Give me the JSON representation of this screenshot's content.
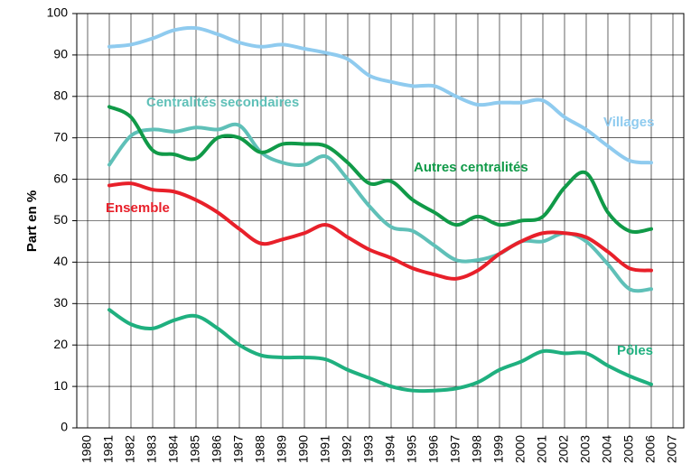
{
  "chart_data": {
    "type": "line",
    "y_label": "Part en %",
    "x": [
      1981,
      1982,
      1983,
      1984,
      1985,
      1986,
      1987,
      1988,
      1989,
      1990,
      1991,
      1992,
      1993,
      1994,
      1995,
      1996,
      1997,
      1998,
      1999,
      2000,
      2001,
      2002,
      2003,
      2004,
      2005,
      2006
    ],
    "xlim": [
      1979.5,
      2007.5
    ],
    "xticks": [
      1980,
      1981,
      1982,
      1983,
      1984,
      1985,
      1986,
      1987,
      1988,
      1989,
      1990,
      1991,
      1992,
      1993,
      1994,
      1995,
      1996,
      1997,
      1998,
      1999,
      2000,
      2001,
      2002,
      2003,
      2004,
      2005,
      2006,
      2007
    ],
    "ylim": [
      0,
      100
    ],
    "yticks": [
      0,
      10,
      20,
      30,
      40,
      50,
      60,
      70,
      80,
      90,
      100
    ],
    "grid": true,
    "series": [
      {
        "name": "Villages",
        "color": "#8fcbef",
        "values": [
          92,
          92.5,
          94,
          96,
          96.5,
          95,
          93,
          92,
          92.5,
          91.5,
          90.5,
          89,
          85,
          83.5,
          82.5,
          82.5,
          80,
          78,
          78.5,
          78.5,
          79,
          75,
          72,
          68,
          64.5,
          64
        ]
      },
      {
        "name": "Centralités secondaires",
        "color": "#5fc0b8",
        "values": [
          63.5,
          70.5,
          72,
          71.5,
          72.5,
          72,
          73,
          66.5,
          64,
          63.5,
          65.5,
          60,
          53.5,
          48.5,
          47.5,
          44,
          40.5,
          40.5,
          42,
          45,
          45,
          47,
          45,
          39.5,
          33.5,
          33.5
        ]
      },
      {
        "name": "Autres centralités",
        "color": "#109a48",
        "values": [
          77.5,
          75,
          67,
          66,
          65,
          70,
          70,
          66.5,
          68.5,
          68.5,
          68,
          64,
          59,
          59.5,
          55,
          52,
          49,
          51,
          49,
          50,
          51,
          58,
          61.5,
          52,
          47.5,
          48
        ]
      },
      {
        "name": "Ensemble",
        "color": "#e8202a",
        "values": [
          58.5,
          59,
          57.5,
          57,
          55,
          52,
          48,
          44.5,
          45.5,
          47,
          49,
          46,
          43,
          41,
          38.5,
          37,
          36,
          38,
          42,
          45,
          47,
          47,
          46,
          42.5,
          38.5,
          38
        ]
      },
      {
        "name": "Pôles",
        "color": "#1fb07f",
        "values": [
          28.5,
          25,
          24,
          26,
          27,
          24,
          20,
          17.5,
          17,
          17,
          16.5,
          14,
          12,
          10,
          9,
          9,
          9.5,
          11,
          14,
          16,
          18.5,
          18,
          18,
          15,
          12.5,
          10.5
        ]
      }
    ]
  }
}
